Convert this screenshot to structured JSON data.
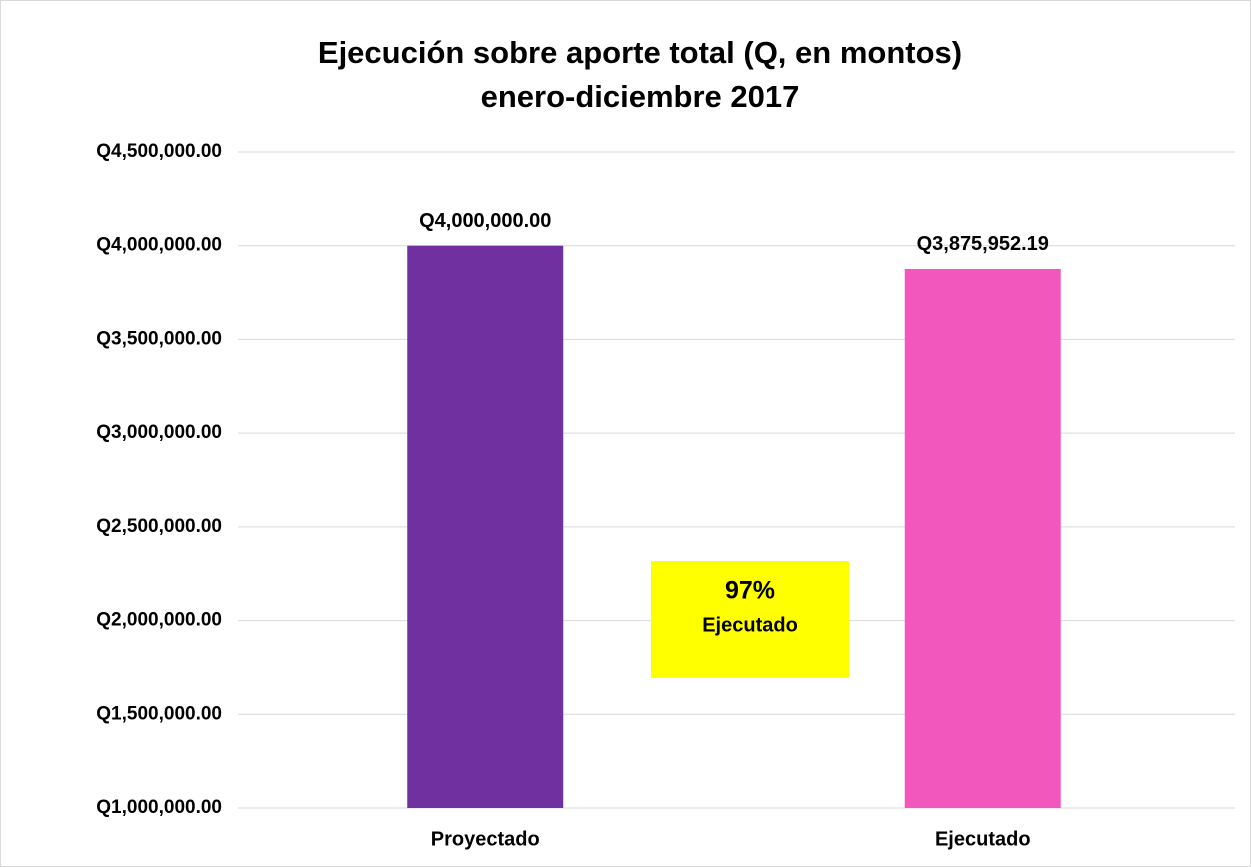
{
  "chart_data": {
    "type": "bar",
    "title": "Ejecución sobre aporte total (Q, en montos)",
    "subtitle": "enero-diciembre 2017",
    "categories": [
      "Proyectado",
      "Ejecutado"
    ],
    "values": [
      4000000,
      3875952.19
    ],
    "value_labels": [
      "Q4,000,000.00",
      "Q3,875,952.19"
    ],
    "colors": [
      "#7030a0",
      "#f257bd"
    ],
    "ylim": [
      1000000,
      4500000
    ],
    "yticks": [
      {
        "value": 1000000,
        "label": "Q1,000,000.00"
      },
      {
        "value": 1500000,
        "label": "Q1,500,000.00"
      },
      {
        "value": 2000000,
        "label": "Q2,000,000.00"
      },
      {
        "value": 2500000,
        "label": "Q2,500,000.00"
      },
      {
        "value": 3000000,
        "label": "Q3,000,000.00"
      },
      {
        "value": 3500000,
        "label": "Q3,500,000.00"
      },
      {
        "value": 4000000,
        "label": "Q4,000,000.00"
      },
      {
        "value": 4500000,
        "label": "Q4,500,000.00"
      }
    ],
    "grid": true,
    "annotations": [
      "97%",
      "Ejecutado"
    ],
    "annotation_color": "#ffff00"
  }
}
